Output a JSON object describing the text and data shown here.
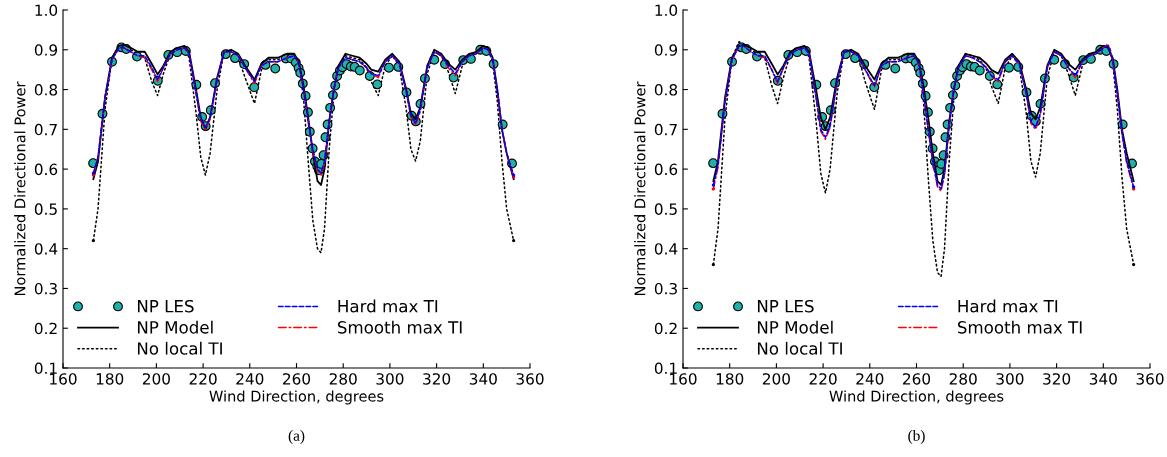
{
  "chart_data": [
    {
      "type": "line",
      "xlabel": "Wind Direction, degrees",
      "ylabel": "Normalized Directional Power",
      "annotations": [
        "(a)"
      ],
      "xlim": [
        160,
        360
      ],
      "ylim": [
        0.1,
        1.0
      ],
      "xticks": [
        160,
        180,
        200,
        220,
        240,
        260,
        280,
        300,
        320,
        340,
        360
      ],
      "yticks": [
        0.1,
        0.2,
        0.3,
        0.4,
        0.5,
        0.6,
        0.7,
        0.8,
        0.9,
        {
          "value": 1.0,
          "label": "1.0"
        }
      ],
      "grid": false,
      "legend": "bottom left",
      "x": [
        173,
        175,
        178,
        181,
        184,
        186,
        189,
        192,
        195,
        198,
        200.5,
        203,
        206,
        209,
        212,
        214,
        217,
        219,
        221,
        223,
        226,
        229,
        232,
        235,
        238,
        242,
        245,
        248,
        252,
        256,
        259,
        261,
        263,
        265,
        267,
        269,
        270.5,
        272,
        274,
        276,
        278,
        281,
        284,
        287,
        290,
        292,
        295,
        298,
        301,
        304,
        307,
        309,
        311,
        313,
        316,
        319,
        322,
        325,
        328,
        331,
        334,
        337,
        340,
        342,
        344,
        346,
        348,
        350,
        353
      ],
      "series": [
        {
          "name": "NP LES",
          "type": "scatter",
          "marker": "circle",
          "color": "#20b2aa",
          "x": [
            172.9,
            176.9,
            181.0,
            185.0,
            187.1,
            191.7,
            200.6,
            205.1,
            208.9,
            212.6,
            217.1,
            219.6,
            221.1,
            223.3,
            225.1,
            229.7,
            233.7,
            237.6,
            241.9,
            246.7,
            250.9,
            255.4,
            257.7,
            259.7,
            260.9,
            261.6,
            262.7,
            263.9,
            264.9,
            265.7,
            266.9,
            267.9,
            268.9,
            269.6,
            270.6,
            271.6,
            272.4,
            273.3,
            274.4,
            275.6,
            276.6,
            277.4,
            278.6,
            279.7,
            281.4,
            283.3,
            284.9,
            287.1,
            291.4,
            294.6,
            299.6,
            303.6,
            307.1,
            309.3,
            311.1,
            313.1,
            315.0,
            319.0,
            323.6,
            327.3,
            331.4,
            334.7,
            338.7,
            341.3,
            344.4,
            348.3,
            352.3
          ],
          "values": [
            0.615,
            0.739,
            0.87,
            0.906,
            0.902,
            0.883,
            0.822,
            0.887,
            0.894,
            0.897,
            0.812,
            0.731,
            0.708,
            0.748,
            0.816,
            0.889,
            0.879,
            0.864,
            0.806,
            0.862,
            0.853,
            0.878,
            0.878,
            0.868,
            0.854,
            0.842,
            0.815,
            0.784,
            0.743,
            0.694,
            0.652,
            0.619,
            0.607,
            0.597,
            0.613,
            0.635,
            0.68,
            0.712,
            0.754,
            0.786,
            0.81,
            0.834,
            0.848,
            0.856,
            0.864,
            0.858,
            0.857,
            0.848,
            0.834,
            0.813,
            0.855,
            0.857,
            0.793,
            0.734,
            0.72,
            0.764,
            0.828,
            0.875,
            0.864,
            0.83,
            0.874,
            0.877,
            0.9,
            0.897,
            0.864,
            0.712,
            0.614
          ]
        },
        {
          "name": "NP Model",
          "line_style": "solid",
          "color": "#000000",
          "values": [
            0.575,
            0.62,
            0.78,
            0.88,
            0.91,
            0.912,
            0.905,
            0.895,
            0.895,
            0.865,
            0.838,
            0.86,
            0.895,
            0.905,
            0.91,
            0.895,
            0.8,
            0.73,
            0.7,
            0.73,
            0.83,
            0.895,
            0.9,
            0.89,
            0.86,
            0.825,
            0.865,
            0.88,
            0.88,
            0.89,
            0.89,
            0.87,
            0.81,
            0.73,
            0.64,
            0.57,
            0.56,
            0.6,
            0.72,
            0.8,
            0.86,
            0.89,
            0.885,
            0.88,
            0.865,
            0.85,
            0.845,
            0.875,
            0.89,
            0.87,
            0.8,
            0.74,
            0.725,
            0.755,
            0.86,
            0.9,
            0.89,
            0.865,
            0.85,
            0.875,
            0.89,
            0.895,
            0.91,
            0.905,
            0.88,
            0.8,
            0.7,
            0.64,
            0.575
          ]
        },
        {
          "name": "No local TI",
          "line_style": "dotted",
          "color": "#000000",
          "values": [
            0.42,
            0.5,
            0.75,
            0.88,
            0.91,
            0.91,
            0.9,
            0.89,
            0.88,
            0.82,
            0.785,
            0.84,
            0.89,
            0.9,
            0.905,
            0.88,
            0.74,
            0.63,
            0.585,
            0.64,
            0.8,
            0.895,
            0.895,
            0.88,
            0.83,
            0.765,
            0.85,
            0.875,
            0.875,
            0.885,
            0.885,
            0.86,
            0.78,
            0.62,
            0.47,
            0.4,
            0.39,
            0.45,
            0.65,
            0.79,
            0.86,
            0.885,
            0.88,
            0.875,
            0.855,
            0.82,
            0.785,
            0.86,
            0.885,
            0.86,
            0.75,
            0.65,
            0.62,
            0.67,
            0.84,
            0.895,
            0.885,
            0.845,
            0.79,
            0.86,
            0.885,
            0.895,
            0.905,
            0.9,
            0.87,
            0.77,
            0.62,
            0.5,
            0.42
          ]
        },
        {
          "name": "Hard max TI",
          "line_style": "dashed",
          "color": "#0000ff",
          "values": [
            0.59,
            0.63,
            0.78,
            0.875,
            0.905,
            0.905,
            0.895,
            0.885,
            0.885,
            0.855,
            0.825,
            0.855,
            0.89,
            0.9,
            0.905,
            0.89,
            0.79,
            0.725,
            0.705,
            0.73,
            0.825,
            0.895,
            0.895,
            0.885,
            0.855,
            0.82,
            0.86,
            0.87,
            0.87,
            0.88,
            0.885,
            0.865,
            0.8,
            0.72,
            0.65,
            0.6,
            0.59,
            0.62,
            0.72,
            0.8,
            0.855,
            0.88,
            0.875,
            0.87,
            0.855,
            0.84,
            0.835,
            0.87,
            0.885,
            0.865,
            0.795,
            0.735,
            0.715,
            0.75,
            0.855,
            0.895,
            0.885,
            0.86,
            0.84,
            0.87,
            0.885,
            0.89,
            0.905,
            0.9,
            0.875,
            0.8,
            0.7,
            0.64,
            0.585
          ]
        },
        {
          "name": "Smooth max TI",
          "line_style": "dashdot",
          "color": "#ff0000",
          "values": [
            0.585,
            0.63,
            0.78,
            0.875,
            0.905,
            0.905,
            0.895,
            0.885,
            0.88,
            0.85,
            0.82,
            0.855,
            0.89,
            0.9,
            0.905,
            0.89,
            0.79,
            0.72,
            0.7,
            0.725,
            0.825,
            0.895,
            0.895,
            0.885,
            0.855,
            0.815,
            0.86,
            0.87,
            0.87,
            0.88,
            0.885,
            0.865,
            0.8,
            0.72,
            0.645,
            0.595,
            0.585,
            0.615,
            0.72,
            0.8,
            0.855,
            0.88,
            0.875,
            0.87,
            0.855,
            0.84,
            0.83,
            0.87,
            0.885,
            0.865,
            0.795,
            0.73,
            0.71,
            0.745,
            0.855,
            0.895,
            0.885,
            0.855,
            0.835,
            0.87,
            0.885,
            0.89,
            0.905,
            0.9,
            0.875,
            0.8,
            0.7,
            0.64,
            0.58
          ]
        }
      ]
    },
    {
      "type": "line",
      "xlabel": "Wind Direction, degrees",
      "ylabel": "Normalized Directional Power",
      "annotations": [
        "(b)"
      ],
      "xlim": [
        160,
        360
      ],
      "ylim": [
        0.1,
        1.0
      ],
      "xticks": [
        160,
        180,
        200,
        220,
        240,
        260,
        280,
        300,
        320,
        340,
        360
      ],
      "yticks": [
        0.1,
        0.2,
        0.3,
        0.4,
        0.5,
        0.6,
        0.7,
        0.8,
        0.9,
        {
          "value": 1.0,
          "label": "1.0"
        }
      ],
      "grid": false,
      "legend": "bottom left",
      "x": [
        173,
        175,
        178,
        181,
        184,
        186,
        189,
        192,
        195,
        198,
        200.5,
        203,
        206,
        209,
        212,
        214,
        217,
        219,
        221,
        223,
        226,
        229,
        232,
        235,
        238,
        242,
        245,
        248,
        252,
        256,
        259,
        261,
        263,
        265,
        267,
        269,
        270.5,
        272,
        274,
        276,
        278,
        281,
        284,
        287,
        290,
        292,
        295,
        298,
        301,
        304,
        307,
        309,
        311,
        313,
        316,
        319,
        322,
        325,
        328,
        331,
        334,
        337,
        340,
        342,
        344,
        346,
        348,
        350,
        353
      ],
      "series": [
        {
          "name": "NP LES",
          "type": "scatter",
          "marker": "circle",
          "color": "#20b2aa",
          "x": [
            172.9,
            176.9,
            181.0,
            185.0,
            187.1,
            191.7,
            200.6,
            205.1,
            208.9,
            212.6,
            217.1,
            219.6,
            221.1,
            223.3,
            225.1,
            229.7,
            233.7,
            237.6,
            241.9,
            246.7,
            250.9,
            255.4,
            257.7,
            259.7,
            260.9,
            261.6,
            262.7,
            263.9,
            264.9,
            265.7,
            266.9,
            267.9,
            268.9,
            269.6,
            270.6,
            271.6,
            272.4,
            273.3,
            274.4,
            275.6,
            276.6,
            277.4,
            278.6,
            279.7,
            281.4,
            283.3,
            284.9,
            287.1,
            291.4,
            294.6,
            299.6,
            303.6,
            307.1,
            309.3,
            311.1,
            313.1,
            315.0,
            319.0,
            323.6,
            327.3,
            331.4,
            334.7,
            338.7,
            341.3,
            344.4,
            348.3,
            352.3
          ],
          "values": [
            0.615,
            0.739,
            0.87,
            0.906,
            0.902,
            0.883,
            0.822,
            0.887,
            0.894,
            0.897,
            0.812,
            0.731,
            0.708,
            0.748,
            0.816,
            0.889,
            0.879,
            0.864,
            0.806,
            0.862,
            0.853,
            0.878,
            0.878,
            0.868,
            0.854,
            0.842,
            0.815,
            0.784,
            0.743,
            0.694,
            0.652,
            0.619,
            0.607,
            0.597,
            0.613,
            0.635,
            0.68,
            0.712,
            0.754,
            0.786,
            0.81,
            0.834,
            0.848,
            0.856,
            0.864,
            0.858,
            0.857,
            0.848,
            0.834,
            0.813,
            0.855,
            0.857,
            0.793,
            0.734,
            0.72,
            0.764,
            0.828,
            0.875,
            0.864,
            0.83,
            0.874,
            0.877,
            0.9,
            0.897,
            0.864,
            0.712,
            0.614
          ]
        },
        {
          "name": "NP Model",
          "line_style": "solid",
          "color": "#000000",
          "values": [
            0.57,
            0.62,
            0.78,
            0.88,
            0.91,
            0.912,
            0.905,
            0.895,
            0.895,
            0.865,
            0.838,
            0.86,
            0.895,
            0.905,
            0.91,
            0.895,
            0.8,
            0.73,
            0.7,
            0.73,
            0.83,
            0.895,
            0.9,
            0.89,
            0.86,
            0.825,
            0.865,
            0.88,
            0.88,
            0.89,
            0.89,
            0.87,
            0.81,
            0.73,
            0.64,
            0.57,
            0.56,
            0.6,
            0.72,
            0.8,
            0.86,
            0.89,
            0.885,
            0.88,
            0.865,
            0.85,
            0.84,
            0.875,
            0.89,
            0.87,
            0.8,
            0.74,
            0.725,
            0.755,
            0.86,
            0.9,
            0.89,
            0.865,
            0.85,
            0.875,
            0.89,
            0.895,
            0.91,
            0.905,
            0.88,
            0.8,
            0.7,
            0.64,
            0.57
          ]
        },
        {
          "name": "No local TI",
          "line_style": "dotted",
          "color": "#000000",
          "values": [
            0.36,
            0.45,
            0.73,
            0.88,
            0.92,
            0.915,
            0.9,
            0.89,
            0.88,
            0.81,
            0.765,
            0.83,
            0.89,
            0.9,
            0.91,
            0.88,
            0.72,
            0.59,
            0.54,
            0.6,
            0.79,
            0.895,
            0.9,
            0.885,
            0.82,
            0.75,
            0.85,
            0.875,
            0.875,
            0.885,
            0.89,
            0.86,
            0.77,
            0.58,
            0.42,
            0.34,
            0.33,
            0.4,
            0.62,
            0.78,
            0.86,
            0.89,
            0.885,
            0.875,
            0.85,
            0.81,
            0.765,
            0.855,
            0.885,
            0.86,
            0.74,
            0.62,
            0.58,
            0.64,
            0.83,
            0.895,
            0.885,
            0.84,
            0.785,
            0.86,
            0.885,
            0.895,
            0.91,
            0.91,
            0.87,
            0.75,
            0.58,
            0.45,
            0.36
          ]
        },
        {
          "name": "Hard max TI",
          "line_style": "dashed",
          "color": "#0000ff",
          "values": [
            0.56,
            0.61,
            0.77,
            0.875,
            0.91,
            0.91,
            0.895,
            0.885,
            0.885,
            0.85,
            0.82,
            0.855,
            0.89,
            0.9,
            0.905,
            0.89,
            0.78,
            0.7,
            0.68,
            0.71,
            0.82,
            0.895,
            0.895,
            0.885,
            0.85,
            0.81,
            0.86,
            0.87,
            0.87,
            0.88,
            0.885,
            0.865,
            0.79,
            0.7,
            0.62,
            0.56,
            0.55,
            0.59,
            0.71,
            0.8,
            0.855,
            0.885,
            0.88,
            0.87,
            0.855,
            0.835,
            0.825,
            0.87,
            0.885,
            0.865,
            0.79,
            0.72,
            0.705,
            0.74,
            0.855,
            0.895,
            0.885,
            0.855,
            0.835,
            0.87,
            0.885,
            0.89,
            0.905,
            0.91,
            0.875,
            0.79,
            0.69,
            0.62,
            0.555
          ]
        },
        {
          "name": "Smooth max TI",
          "line_style": "dashdot",
          "color": "#ff0000",
          "values": [
            0.55,
            0.605,
            0.77,
            0.875,
            0.91,
            0.91,
            0.895,
            0.885,
            0.88,
            0.85,
            0.815,
            0.855,
            0.89,
            0.9,
            0.905,
            0.89,
            0.78,
            0.695,
            0.675,
            0.705,
            0.82,
            0.895,
            0.895,
            0.885,
            0.85,
            0.805,
            0.86,
            0.87,
            0.87,
            0.88,
            0.885,
            0.865,
            0.79,
            0.7,
            0.615,
            0.555,
            0.545,
            0.585,
            0.71,
            0.8,
            0.855,
            0.885,
            0.88,
            0.87,
            0.855,
            0.835,
            0.82,
            0.87,
            0.885,
            0.865,
            0.79,
            0.715,
            0.7,
            0.735,
            0.855,
            0.895,
            0.885,
            0.855,
            0.83,
            0.87,
            0.885,
            0.89,
            0.905,
            0.915,
            0.875,
            0.79,
            0.69,
            0.615,
            0.55
          ]
        }
      ]
    }
  ]
}
